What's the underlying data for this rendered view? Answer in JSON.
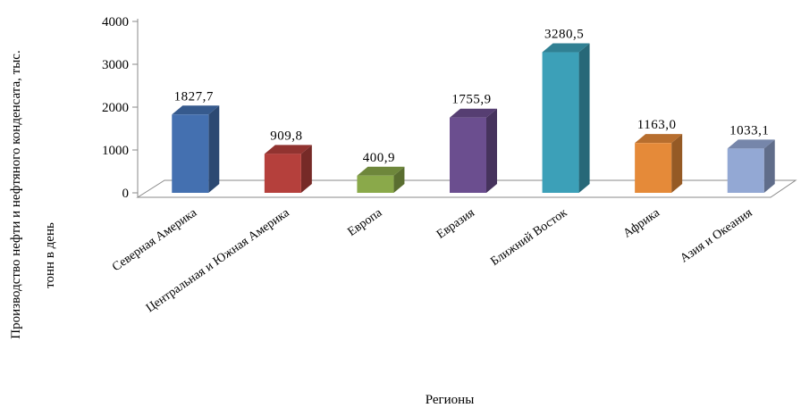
{
  "chart_data": {
    "type": "bar",
    "style": "3d-column",
    "categories": [
      "Северная Америка",
      "Центральная и Южная Америка",
      "Европа",
      "Евразия",
      "Ближний Восток",
      "Африка",
      "Азия и Океания"
    ],
    "values": [
      1827.7,
      909.8,
      400.9,
      1755.9,
      3280.5,
      1163.0,
      1033.1
    ],
    "data_labels": [
      "1827,7",
      "909,8",
      "400,9",
      "1755,9",
      "3280,5",
      "1163,0",
      "1033,1"
    ],
    "colors": [
      "#4470b0",
      "#b5403c",
      "#8aa94a",
      "#6b4e8f",
      "#3ca0b8",
      "#e58a39",
      "#93a8d4"
    ],
    "xlabel": "Регионы",
    "ylabel_line1": "Производство нефти и нефтяного конденсата, тыс.",
    "ylabel_line2": "тонн в день",
    "ylim": [
      0,
      4000
    ],
    "yticks": [
      "0",
      "1000",
      "2000",
      "3000",
      "4000"
    ],
    "grid": false,
    "legend": "none"
  }
}
